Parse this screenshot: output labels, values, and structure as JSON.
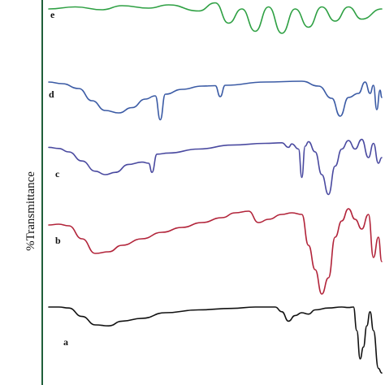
{
  "chart_data": {
    "type": "line",
    "title": "",
    "xlabel": "",
    "ylabel": "%Transmittance",
    "grid": false,
    "legend": "none",
    "series": [
      {
        "name": "e",
        "color": "#2ea043",
        "points": [
          [
            0,
            0.1
          ],
          [
            0.08,
            0.05
          ],
          [
            0.16,
            0.12
          ],
          [
            0.22,
            0.02
          ],
          [
            0.3,
            0.08
          ],
          [
            0.36,
            0.0
          ],
          [
            0.45,
            0.15
          ],
          [
            0.5,
            -0.05
          ],
          [
            0.54,
            0.45
          ],
          [
            0.58,
            0.1
          ],
          [
            0.62,
            0.65
          ],
          [
            0.66,
            0.05
          ],
          [
            0.7,
            0.7
          ],
          [
            0.74,
            0.1
          ],
          [
            0.78,
            0.55
          ],
          [
            0.82,
            0.05
          ],
          [
            0.86,
            0.4
          ],
          [
            0.9,
            0.05
          ],
          [
            0.94,
            0.35
          ],
          [
            1.0,
            0.1
          ]
        ]
      },
      {
        "name": "d",
        "color": "#3b5ba5",
        "points": [
          [
            0,
            0.02
          ],
          [
            0.04,
            0.06
          ],
          [
            0.09,
            0.18
          ],
          [
            0.13,
            0.48
          ],
          [
            0.17,
            0.72
          ],
          [
            0.21,
            0.78
          ],
          [
            0.25,
            0.65
          ],
          [
            0.29,
            0.44
          ],
          [
            0.32,
            0.36
          ],
          [
            0.335,
            0.95
          ],
          [
            0.35,
            0.32
          ],
          [
            0.4,
            0.2
          ],
          [
            0.46,
            0.12
          ],
          [
            0.5,
            0.11
          ],
          [
            0.515,
            0.38
          ],
          [
            0.53,
            0.1
          ],
          [
            0.65,
            0.02
          ],
          [
            0.76,
            0.0
          ],
          [
            0.81,
            0.12
          ],
          [
            0.85,
            0.42
          ],
          [
            0.875,
            0.86
          ],
          [
            0.9,
            0.4
          ],
          [
            0.93,
            0.3
          ],
          [
            0.95,
            0.02
          ],
          [
            0.965,
            0.3
          ],
          [
            0.975,
            0.1
          ],
          [
            0.985,
            0.7
          ],
          [
            0.995,
            0.22
          ],
          [
            1.0,
            0.4
          ]
        ]
      },
      {
        "name": "c",
        "color": "#4a4aa0",
        "points": [
          [
            0,
            0.02
          ],
          [
            0.03,
            0.04
          ],
          [
            0.06,
            0.1
          ],
          [
            0.1,
            0.26
          ],
          [
            0.14,
            0.44
          ],
          [
            0.17,
            0.5
          ],
          [
            0.2,
            0.46
          ],
          [
            0.24,
            0.32
          ],
          [
            0.28,
            0.28
          ],
          [
            0.3,
            0.3
          ],
          [
            0.31,
            0.46
          ],
          [
            0.325,
            0.14
          ],
          [
            0.36,
            0.12
          ],
          [
            0.45,
            0.05
          ],
          [
            0.55,
            -0.02
          ],
          [
            0.65,
            -0.05
          ],
          [
            0.7,
            -0.06
          ],
          [
            0.72,
            0.02
          ],
          [
            0.73,
            -0.04
          ],
          [
            0.75,
            0.05
          ],
          [
            0.76,
            0.55
          ],
          [
            0.77,
            0.0
          ],
          [
            0.78,
            -0.08
          ],
          [
            0.8,
            0.1
          ],
          [
            0.82,
            0.5
          ],
          [
            0.84,
            0.85
          ],
          [
            0.86,
            0.35
          ],
          [
            0.88,
            0.05
          ],
          [
            0.9,
            -0.1
          ],
          [
            0.92,
            0.05
          ],
          [
            0.94,
            -0.12
          ],
          [
            0.96,
            0.2
          ],
          [
            0.975,
            -0.05
          ],
          [
            0.99,
            0.3
          ],
          [
            1.0,
            0.2
          ]
        ]
      },
      {
        "name": "b",
        "color": "#b2243a",
        "points": [
          [
            0,
            0.15
          ],
          [
            0.03,
            0.14
          ],
          [
            0.06,
            0.16
          ],
          [
            0.1,
            0.32
          ],
          [
            0.14,
            0.5
          ],
          [
            0.18,
            0.48
          ],
          [
            0.22,
            0.4
          ],
          [
            0.28,
            0.32
          ],
          [
            0.34,
            0.24
          ],
          [
            0.4,
            0.18
          ],
          [
            0.46,
            0.12
          ],
          [
            0.52,
            0.06
          ],
          [
            0.56,
            0.0
          ],
          [
            0.6,
            -0.02
          ],
          [
            0.63,
            0.12
          ],
          [
            0.66,
            0.08
          ],
          [
            0.7,
            0.02
          ],
          [
            0.73,
            0.0
          ],
          [
            0.76,
            0.02
          ],
          [
            0.78,
            0.4
          ],
          [
            0.8,
            0.7
          ],
          [
            0.82,
            1.0
          ],
          [
            0.84,
            0.8
          ],
          [
            0.86,
            0.3
          ],
          [
            0.88,
            0.1
          ],
          [
            0.9,
            -0.05
          ],
          [
            0.92,
            0.08
          ],
          [
            0.94,
            0.2
          ],
          [
            0.96,
            0.02
          ],
          [
            0.975,
            0.55
          ],
          [
            0.99,
            0.3
          ],
          [
            1.0,
            0.6
          ]
        ]
      },
      {
        "name": "a",
        "color": "#111111",
        "points": [
          [
            0,
            0.0
          ],
          [
            0.03,
            0.0
          ],
          [
            0.06,
            0.02
          ],
          [
            0.1,
            0.2
          ],
          [
            0.14,
            0.38
          ],
          [
            0.18,
            0.4
          ],
          [
            0.22,
            0.3
          ],
          [
            0.28,
            0.24
          ],
          [
            0.35,
            0.12
          ],
          [
            0.45,
            0.06
          ],
          [
            0.55,
            0.03
          ],
          [
            0.62,
            0.0
          ],
          [
            0.68,
            0.0
          ],
          [
            0.7,
            0.1
          ],
          [
            0.72,
            0.3
          ],
          [
            0.74,
            0.18
          ],
          [
            0.76,
            0.12
          ],
          [
            0.78,
            0.15
          ],
          [
            0.8,
            0.06
          ],
          [
            0.84,
            0.02
          ],
          [
            0.88,
            0.0
          ],
          [
            0.9,
            0.01
          ],
          [
            0.915,
            0.0
          ],
          [
            0.925,
            0.5
          ],
          [
            0.935,
            1.1
          ],
          [
            0.945,
            0.85
          ],
          [
            0.955,
            0.4
          ],
          [
            0.965,
            0.1
          ],
          [
            0.975,
            0.5
          ],
          [
            0.99,
            1.3
          ],
          [
            1.0,
            1.4
          ]
        ]
      }
    ]
  }
}
